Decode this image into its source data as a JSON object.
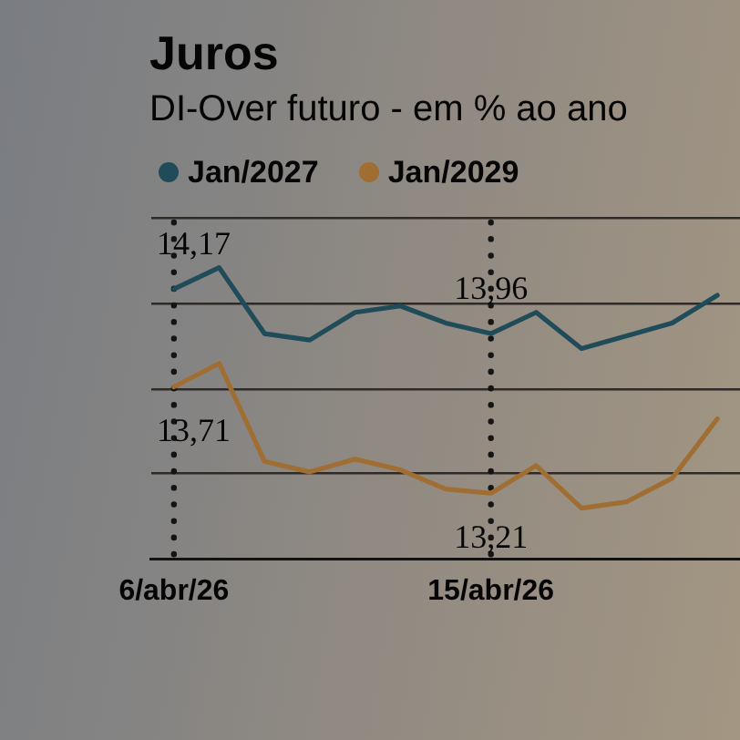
{
  "chart_data": {
    "type": "line",
    "title": "Juros",
    "subtitle": "DI-Over futuro - em % ao ano",
    "categories": [
      "6/abr/26",
      null,
      null,
      null,
      null,
      null,
      null,
      "15/abr/26",
      null,
      null,
      null,
      null,
      null
    ],
    "series": [
      {
        "name": "Jan/2027",
        "color": "#1f4c58",
        "values": [
          14.17,
          14.27,
          13.96,
          13.93,
          14.06,
          14.09,
          14.01,
          13.96,
          14.06,
          13.89,
          13.95,
          14.01,
          14.14
        ],
        "value_labels": [
          "14,17",
          null,
          null,
          null,
          null,
          null,
          null,
          "13,96",
          null,
          null,
          null,
          null,
          null
        ]
      },
      {
        "name": "Jan/2029",
        "color": "#a06e32",
        "values": [
          13.71,
          13.82,
          13.36,
          13.31,
          13.37,
          13.32,
          13.23,
          13.21,
          13.34,
          13.14,
          13.17,
          13.28,
          13.56
        ],
        "value_labels": [
          "13,71",
          null,
          null,
          null,
          null,
          null,
          null,
          "13,21",
          null,
          null,
          null,
          null,
          null
        ]
      }
    ],
    "ylim": [
      12.9,
      14.5
    ],
    "yticks": [
      {
        "value": 12.9,
        "label": null
      },
      {
        "value": 13.3,
        "label": null
      },
      {
        "value": 13.7,
        "label": null
      },
      {
        "value": 14.1,
        "label": null
      },
      {
        "value": 14.5,
        "label": null
      }
    ],
    "tick_labels": "x",
    "grid": "y",
    "legend": "top left",
    "marker": "none",
    "line_style": "solid",
    "ref_lines": [
      {
        "axis": "x",
        "value": "6/abr/26",
        "color": "#141414",
        "line_style": "dotted"
      },
      {
        "axis": "x",
        "value": "15/abr/26",
        "color": "#141414",
        "line_style": "dotted"
      }
    ]
  }
}
